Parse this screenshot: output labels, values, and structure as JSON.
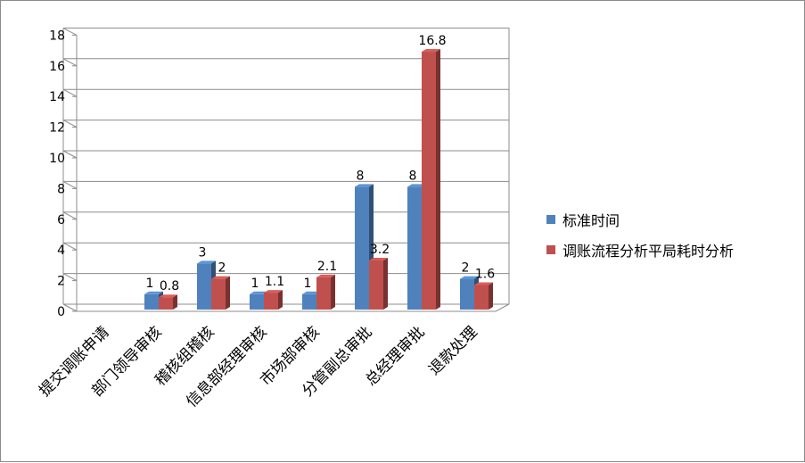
{
  "chart_data": {
    "type": "bar",
    "categories": [
      "提交调账申请",
      "部门领导审核",
      "稽核组稽核",
      "信息部经理审核",
      "市场部审核",
      "分管副总审批",
      "总经理审批",
      "退款处理"
    ],
    "series": [
      {
        "name": "标准时间",
        "values": [
          null,
          1,
          3,
          1,
          1,
          8,
          8,
          2
        ],
        "labels": [
          "",
          "1",
          "3",
          "1",
          "1",
          "8",
          "8",
          "2"
        ],
        "color": "#4f81bd"
      },
      {
        "name": "调账流程分析平局耗时分析",
        "values": [
          null,
          0.8,
          2,
          1.1,
          2.1,
          3.2,
          16.8,
          1.6
        ],
        "labels": [
          "",
          "0.8",
          "2",
          "1.1",
          "2.1",
          "3.2",
          "16.8",
          "1.6"
        ],
        "color": "#c0504d"
      }
    ],
    "yticks": [
      "0",
      "2",
      "4",
      "6",
      "8",
      "10",
      "12",
      "14",
      "16",
      "18"
    ],
    "ylim": [
      0,
      18
    ],
    "grid": true,
    "legend_position": "right",
    "style": "3d-clustered-column"
  }
}
